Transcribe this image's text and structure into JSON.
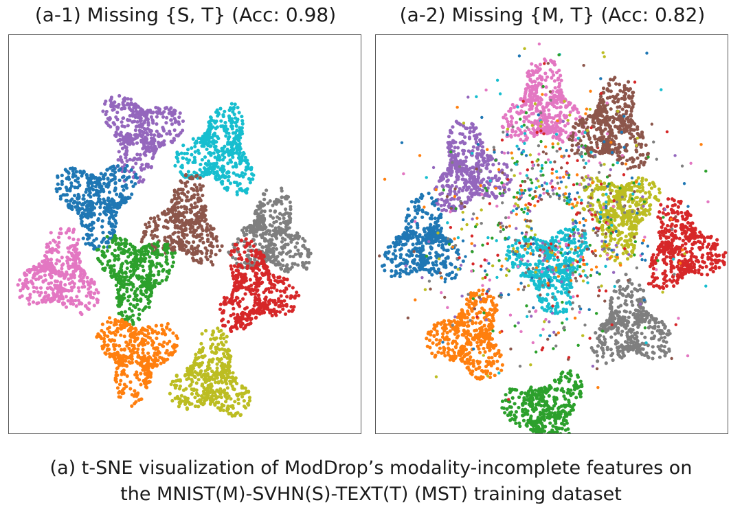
{
  "panels": [
    {
      "title": "(a-1) Missing {S, T} (Acc: 0.98)"
    },
    {
      "title": "(a-2) Missing {M, T} (Acc: 0.82)"
    }
  ],
  "caption": {
    "line1": "(a) t-SNE visualization of ModDrop’s modality-incomplete features on",
    "line2": "the MNIST(M)-SVHN(S)-TEXT(T) (MST) training dataset"
  },
  "colors": {
    "blue": "#1f77b4",
    "orange": "#ff7f0e",
    "green": "#2ca02c",
    "red": "#d62728",
    "purple": "#9467bd",
    "brown": "#8c564b",
    "pink": "#e377c2",
    "gray": "#7f7f7f",
    "olive": "#bcbd22",
    "cyan": "#17becf"
  },
  "chart_data": [
    {
      "type": "scatter",
      "title": "(a-1) Missing {S, T} (Acc: 0.98)",
      "accuracy": 0.98,
      "axes_visible": false,
      "grid": false,
      "series": [
        {
          "color": "purple",
          "x": -0.33,
          "y": 0.68
        },
        {
          "color": "cyan",
          "x": 0.25,
          "y": 0.55
        },
        {
          "color": "blue",
          "x": -0.64,
          "y": 0.2
        },
        {
          "color": "brown",
          "x": 0.0,
          "y": 0.02
        },
        {
          "color": "gray",
          "x": 0.63,
          "y": -0.06
        },
        {
          "color": "pink",
          "x": -0.91,
          "y": -0.35
        },
        {
          "color": "green",
          "x": -0.36,
          "y": -0.33
        },
        {
          "color": "red",
          "x": 0.51,
          "y": -0.45
        },
        {
          "color": "orange",
          "x": -0.36,
          "y": -0.92
        },
        {
          "color": "olive",
          "x": 0.19,
          "y": -1.1
        }
      ]
    },
    {
      "type": "scatter",
      "title": "(a-2) Missing {M, T} (Acc: 0.82)",
      "accuracy": 0.82,
      "axes_visible": false,
      "grid": false,
      "series": [
        {
          "color": "pink",
          "x": -0.06,
          "y": 0.88
        },
        {
          "color": "brown",
          "x": 0.44,
          "y": 0.73
        },
        {
          "color": "purple",
          "x": -0.59,
          "y": 0.42
        },
        {
          "color": "olive",
          "x": 0.49,
          "y": 0.12
        },
        {
          "color": "red",
          "x": 0.95,
          "y": -0.15
        },
        {
          "color": "blue",
          "x": -0.94,
          "y": -0.12
        },
        {
          "color": "cyan",
          "x": -0.01,
          "y": -0.28
        },
        {
          "color": "gray",
          "x": 0.57,
          "y": -0.72
        },
        {
          "color": "orange",
          "x": -0.6,
          "y": -0.8
        },
        {
          "color": "green",
          "x": -0.04,
          "y": -1.35
        }
      ]
    }
  ]
}
